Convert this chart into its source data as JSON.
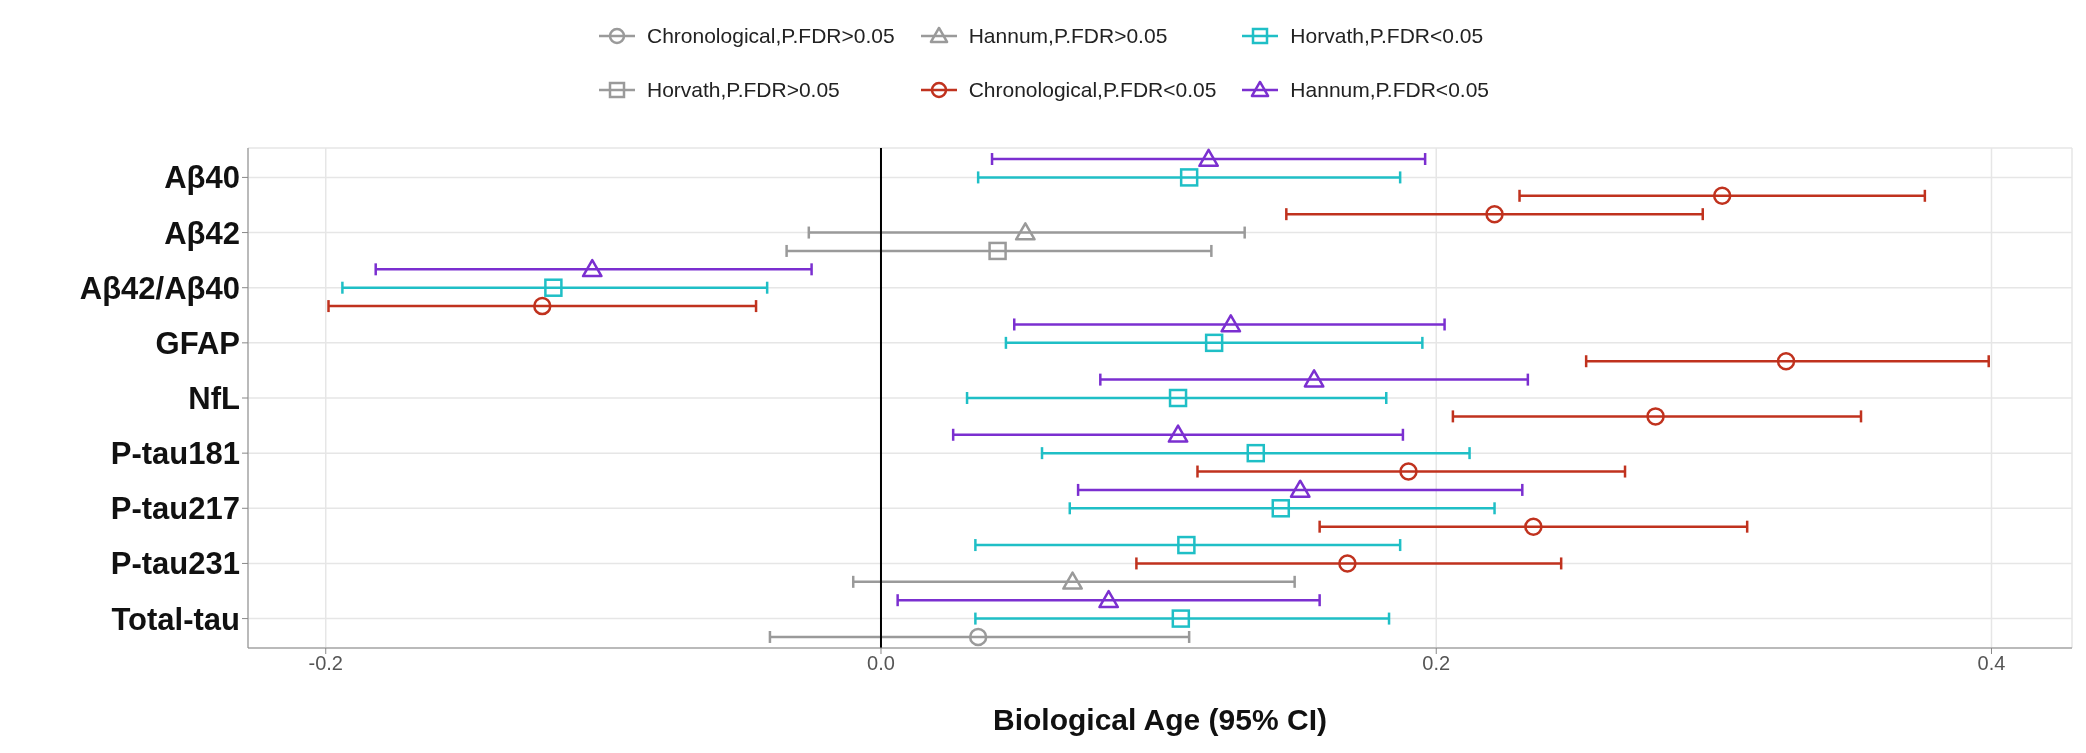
{
  "chart_data": {
    "type": "scatter",
    "orientation": "horizontal",
    "xlabel": "Biological Age (95% CI)",
    "categories": [
      null,
      "Aβ40",
      null,
      null,
      "Aβ42",
      null,
      null,
      "Aβ42/Aβ40",
      null,
      null,
      "GFAP",
      null,
      null,
      "NfL",
      null,
      null,
      "P-tau181",
      null,
      null,
      "P-tau217",
      null,
      null,
      "P-tau231",
      null,
      null,
      "Total-tau",
      null
    ],
    "xlim": [
      -0.228,
      0.429
    ],
    "xticks": [
      {
        "value": -0.2,
        "label": "-0.2"
      },
      {
        "value": 0,
        "label": "0.0"
      },
      {
        "value": 0.2,
        "label": "0.2"
      },
      {
        "value": 0.4,
        "label": "0.4"
      }
    ],
    "grid": true,
    "legend": "top",
    "ref_lines": [
      {
        "axis": "x",
        "value": 0,
        "color": "#000000"
      }
    ],
    "series": [
      {
        "name": "Chronological,P.FDR>0.05",
        "color": "#9a9a9a",
        "marker": "circle",
        "values": [
          null,
          null,
          null,
          null,
          null,
          null,
          null,
          null,
          null,
          null,
          null,
          null,
          null,
          null,
          null,
          null,
          null,
          null,
          null,
          null,
          null,
          null,
          null,
          null,
          null,
          null,
          0.035
        ],
        "errors": [
          null,
          null,
          null,
          null,
          null,
          null,
          null,
          null,
          null,
          null,
          null,
          null,
          null,
          null,
          null,
          null,
          null,
          null,
          null,
          null,
          null,
          null,
          null,
          null,
          null,
          null,
          [
            -0.04,
            0.111
          ]
        ]
      },
      {
        "name": "Hannum,P.FDR>0.05",
        "color": "#9a9a9a",
        "marker": "triangle",
        "values": [
          null,
          null,
          null,
          null,
          0.052,
          null,
          null,
          null,
          null,
          null,
          null,
          null,
          null,
          null,
          null,
          null,
          null,
          null,
          null,
          null,
          null,
          null,
          null,
          0.069,
          null,
          null,
          null
        ],
        "errors": [
          null,
          null,
          null,
          null,
          [
            -0.026,
            0.131
          ],
          null,
          null,
          null,
          null,
          null,
          null,
          null,
          null,
          null,
          null,
          null,
          null,
          null,
          null,
          null,
          null,
          null,
          null,
          [
            -0.01,
            0.149
          ],
          null,
          null,
          null
        ]
      },
      {
        "name": "Horvath,P.FDR<0.05",
        "color": "#1fbfc6",
        "marker": "square",
        "values": [
          null,
          0.111,
          null,
          null,
          null,
          null,
          null,
          -0.118,
          null,
          null,
          0.12,
          null,
          null,
          0.107,
          null,
          null,
          0.135,
          null,
          null,
          0.144,
          null,
          0.11,
          null,
          null,
          null,
          0.108,
          null
        ],
        "errors": [
          null,
          [
            0.035,
            0.187
          ],
          null,
          null,
          null,
          null,
          null,
          [
            -0.194,
            -0.041
          ],
          null,
          null,
          [
            0.045,
            0.195
          ],
          null,
          null,
          [
            0.031,
            0.182
          ],
          null,
          null,
          [
            0.058,
            0.212
          ],
          null,
          null,
          [
            0.068,
            0.221
          ],
          null,
          [
            0.034,
            0.187
          ],
          null,
          null,
          null,
          [
            0.034,
            0.183
          ],
          null
        ]
      },
      {
        "name": "Horvath,P.FDR>0.05",
        "color": "#9a9a9a",
        "marker": "square",
        "values": [
          null,
          null,
          null,
          null,
          null,
          0.042,
          null,
          null,
          null,
          null,
          null,
          null,
          null,
          null,
          null,
          null,
          null,
          null,
          null,
          null,
          null,
          null,
          null,
          null,
          null,
          null,
          null
        ],
        "errors": [
          null,
          null,
          null,
          null,
          null,
          [
            -0.034,
            0.119
          ],
          null,
          null,
          null,
          null,
          null,
          null,
          null,
          null,
          null,
          null,
          null,
          null,
          null,
          null,
          null,
          null,
          null,
          null,
          null,
          null,
          null
        ]
      },
      {
        "name": "Chronological,P.FDR<0.05",
        "color": "#c0321e",
        "marker": "circle",
        "values": [
          null,
          null,
          0.303,
          0.221,
          null,
          null,
          null,
          null,
          -0.122,
          null,
          null,
          0.326,
          null,
          null,
          0.279,
          null,
          null,
          0.19,
          null,
          null,
          0.235,
          null,
          0.168,
          null,
          null,
          null,
          null
        ],
        "errors": [
          null,
          null,
          [
            0.23,
            0.376
          ],
          [
            0.146,
            0.296
          ],
          null,
          null,
          null,
          null,
          [
            -0.199,
            -0.045
          ],
          null,
          null,
          [
            0.254,
            0.399
          ],
          null,
          null,
          [
            0.206,
            0.353
          ],
          null,
          null,
          [
            0.114,
            0.268
          ],
          null,
          null,
          [
            0.158,
            0.312
          ],
          null,
          [
            0.092,
            0.245
          ],
          null,
          null,
          null,
          null
        ]
      },
      {
        "name": "Hannum,P.FDR<0.05",
        "color": "#7b2fd0",
        "marker": "triangle",
        "values": [
          0.118,
          null,
          null,
          null,
          null,
          null,
          -0.104,
          null,
          null,
          0.126,
          null,
          null,
          0.156,
          null,
          null,
          0.107,
          null,
          null,
          0.151,
          null,
          null,
          null,
          null,
          null,
          0.082,
          null,
          null
        ],
        "errors": [
          [
            0.04,
            0.196
          ],
          null,
          null,
          null,
          null,
          null,
          [
            -0.182,
            -0.025
          ],
          null,
          null,
          [
            0.048,
            0.203
          ],
          null,
          null,
          [
            0.079,
            0.233
          ],
          null,
          null,
          [
            0.026,
            0.188
          ],
          null,
          null,
          [
            0.071,
            0.231
          ],
          null,
          null,
          null,
          null,
          null,
          [
            0.006,
            0.158
          ],
          null,
          null
        ]
      }
    ]
  }
}
